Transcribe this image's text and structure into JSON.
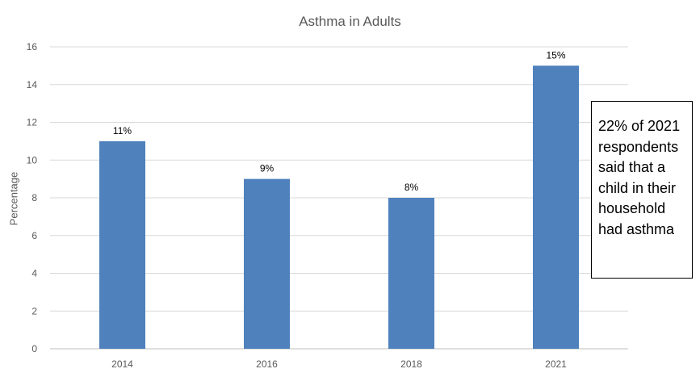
{
  "chart_data": {
    "type": "bar",
    "title": "Asthma in Adults",
    "xlabel": "",
    "ylabel": "Percentage",
    "categories": [
      "2014",
      "2016",
      "2018",
      "2021"
    ],
    "values": [
      11,
      9,
      8,
      15
    ],
    "data_labels": [
      "11%",
      "9%",
      "8%",
      "15%"
    ],
    "ylim": [
      0,
      16
    ],
    "yticks": [
      0,
      2,
      4,
      6,
      8,
      10,
      12,
      14,
      16
    ],
    "grid": true,
    "legend": "none",
    "bar_color": "#4f81bd",
    "annotation": "22% of 2021 respondents said that a child in their household had asthma"
  }
}
